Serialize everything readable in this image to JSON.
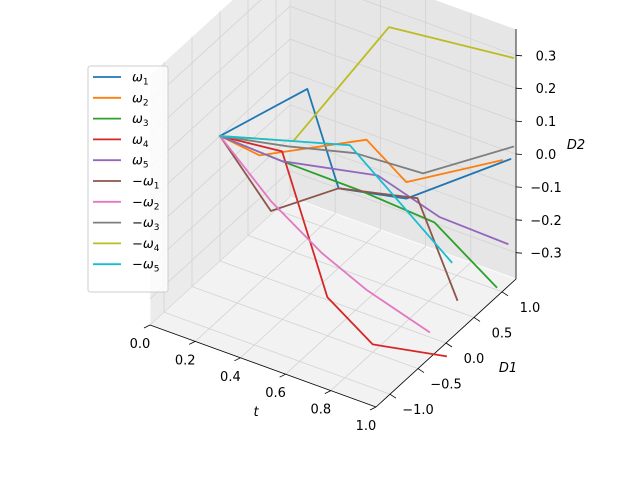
{
  "chart_data": {
    "type": "line",
    "projection": "3d",
    "axes": {
      "x": {
        "label": "t",
        "range": [
          0,
          1
        ],
        "ticks": [
          0.0,
          0.2,
          0.4,
          0.6,
          0.8,
          1.0
        ],
        "tick_labels": [
          "0.0",
          "0.2",
          "0.4",
          "0.6",
          "0.8",
          "1.0"
        ]
      },
      "y": {
        "label": "D1",
        "range": [
          -1.25,
          1.25
        ],
        "ticks": [
          -1.0,
          -0.5,
          0.0,
          0.5,
          1.0
        ],
        "tick_labels": [
          "−1.0",
          "−0.5",
          "0.0",
          "0.5",
          "1.0"
        ]
      },
      "z": {
        "label": "D2",
        "range": [
          -0.38,
          0.38
        ],
        "ticks": [
          -0.3,
          -0.2,
          -0.1,
          0.0,
          0.1,
          0.2,
          0.3
        ],
        "tick_labels": [
          "−0.3",
          "−0.2",
          "−0.1",
          "0.0",
          "0.1",
          "0.2",
          "0.3"
        ]
      }
    },
    "grid": true,
    "legend_position": "upper-left",
    "series": [
      {
        "name": "ω1",
        "label_main": "ω",
        "label_sub": "1",
        "negated": false,
        "color": "#1f77b4",
        "t": [
          0,
          0.25,
          0.5,
          0.75,
          1.0
        ],
        "d1": [
          0,
          0.55,
          0.1,
          0.3,
          1.15
        ],
        "d2": [
          0,
          0.12,
          -0.05,
          -0.05,
          0.0
        ]
      },
      {
        "name": "ω2",
        "label_main": "ω",
        "label_sub": "2",
        "negated": false,
        "color": "#ff7f0e",
        "t": [
          0,
          0.25,
          0.5,
          0.75,
          1.0
        ],
        "d1": [
          0,
          -0.3,
          0.6,
          0.3,
          1.0
        ],
        "d2": [
          0,
          0.05,
          0.02,
          0.0,
          0.02
        ]
      },
      {
        "name": "ω3",
        "label_main": "ω",
        "label_sub": "3",
        "negated": false,
        "color": "#2ca02c",
        "t": [
          0,
          0.25,
          0.5,
          0.75,
          1.0
        ],
        "d1": [
          0,
          0.1,
          0.5,
          0.8,
          0.9
        ],
        "d2": [
          0,
          -0.03,
          -0.12,
          -0.2,
          -0.35
        ]
      },
      {
        "name": "ω4",
        "label_main": "ω",
        "label_sub": "4",
        "negated": false,
        "color": "#d62728",
        "t": [
          0,
          0.25,
          0.5,
          0.75,
          1.0
        ],
        "d1": [
          0,
          0.1,
          -0.1,
          -0.3,
          0.0
        ],
        "d2": [
          0,
          0.0,
          -0.35,
          -0.4,
          -0.42
        ]
      },
      {
        "name": "ω5",
        "label_main": "ω",
        "label_sub": "5",
        "negated": false,
        "color": "#9467bd",
        "t": [
          0,
          0.25,
          0.5,
          0.75,
          1.0
        ],
        "d1": [
          0,
          0.1,
          0.8,
          0.9,
          1.1
        ],
        "d2": [
          0,
          -0.03,
          -0.12,
          -0.2,
          -0.25
        ]
      },
      {
        "name": "−ω1",
        "label_main": "−ω",
        "label_sub": "1",
        "negated": true,
        "color": "#8c564b",
        "t": [
          0,
          0.25,
          0.5,
          0.75,
          1.0
        ],
        "d1": [
          0,
          -0.1,
          0.1,
          0.5,
          0.2
        ],
        "d2": [
          0,
          -0.15,
          -0.05,
          -0.08,
          -0.28
        ]
      },
      {
        "name": "−ω2",
        "label_main": "−ω",
        "label_sub": "2",
        "negated": true,
        "color": "#e377c2",
        "t": [
          0,
          0.25,
          0.5,
          0.75,
          1.0
        ],
        "d1": [
          0,
          -0.1,
          -0.2,
          -0.4,
          -0.3
        ],
        "d2": [
          0,
          -0.12,
          -0.2,
          -0.22,
          -0.3
        ]
      },
      {
        "name": "−ω3",
        "label_main": "−ω",
        "label_sub": "3",
        "negated": true,
        "color": "#7f7f7f",
        "t": [
          0,
          0.25,
          0.5,
          0.75,
          1.0
        ],
        "d1": [
          0,
          0.2,
          0.4,
          0.6,
          1.2
        ],
        "d2": [
          0,
          0.0,
          0.01,
          -0.02,
          0.03
        ]
      },
      {
        "name": "−ω4",
        "label_main": "−ω",
        "label_sub": "4",
        "negated": true,
        "color": "#bcbd22",
        "t": [
          0,
          0.25,
          0.5,
          0.75,
          1.0
        ],
        "d1": [
          0,
          0.3,
          1.0,
          1.1,
          1.2
        ],
        "d2": [
          0,
          0.0,
          0.3,
          0.3,
          0.3
        ]
      },
      {
        "name": "−ω5",
        "label_main": "−ω",
        "label_sub": "5",
        "negated": true,
        "color": "#17becf",
        "t": [
          0,
          0.25,
          0.5,
          0.75,
          1.0
        ],
        "d1": [
          0,
          0.3,
          0.3,
          0.2,
          0.1
        ],
        "d2": [
          0,
          0.0,
          0.05,
          -0.05,
          -0.15
        ]
      }
    ]
  }
}
